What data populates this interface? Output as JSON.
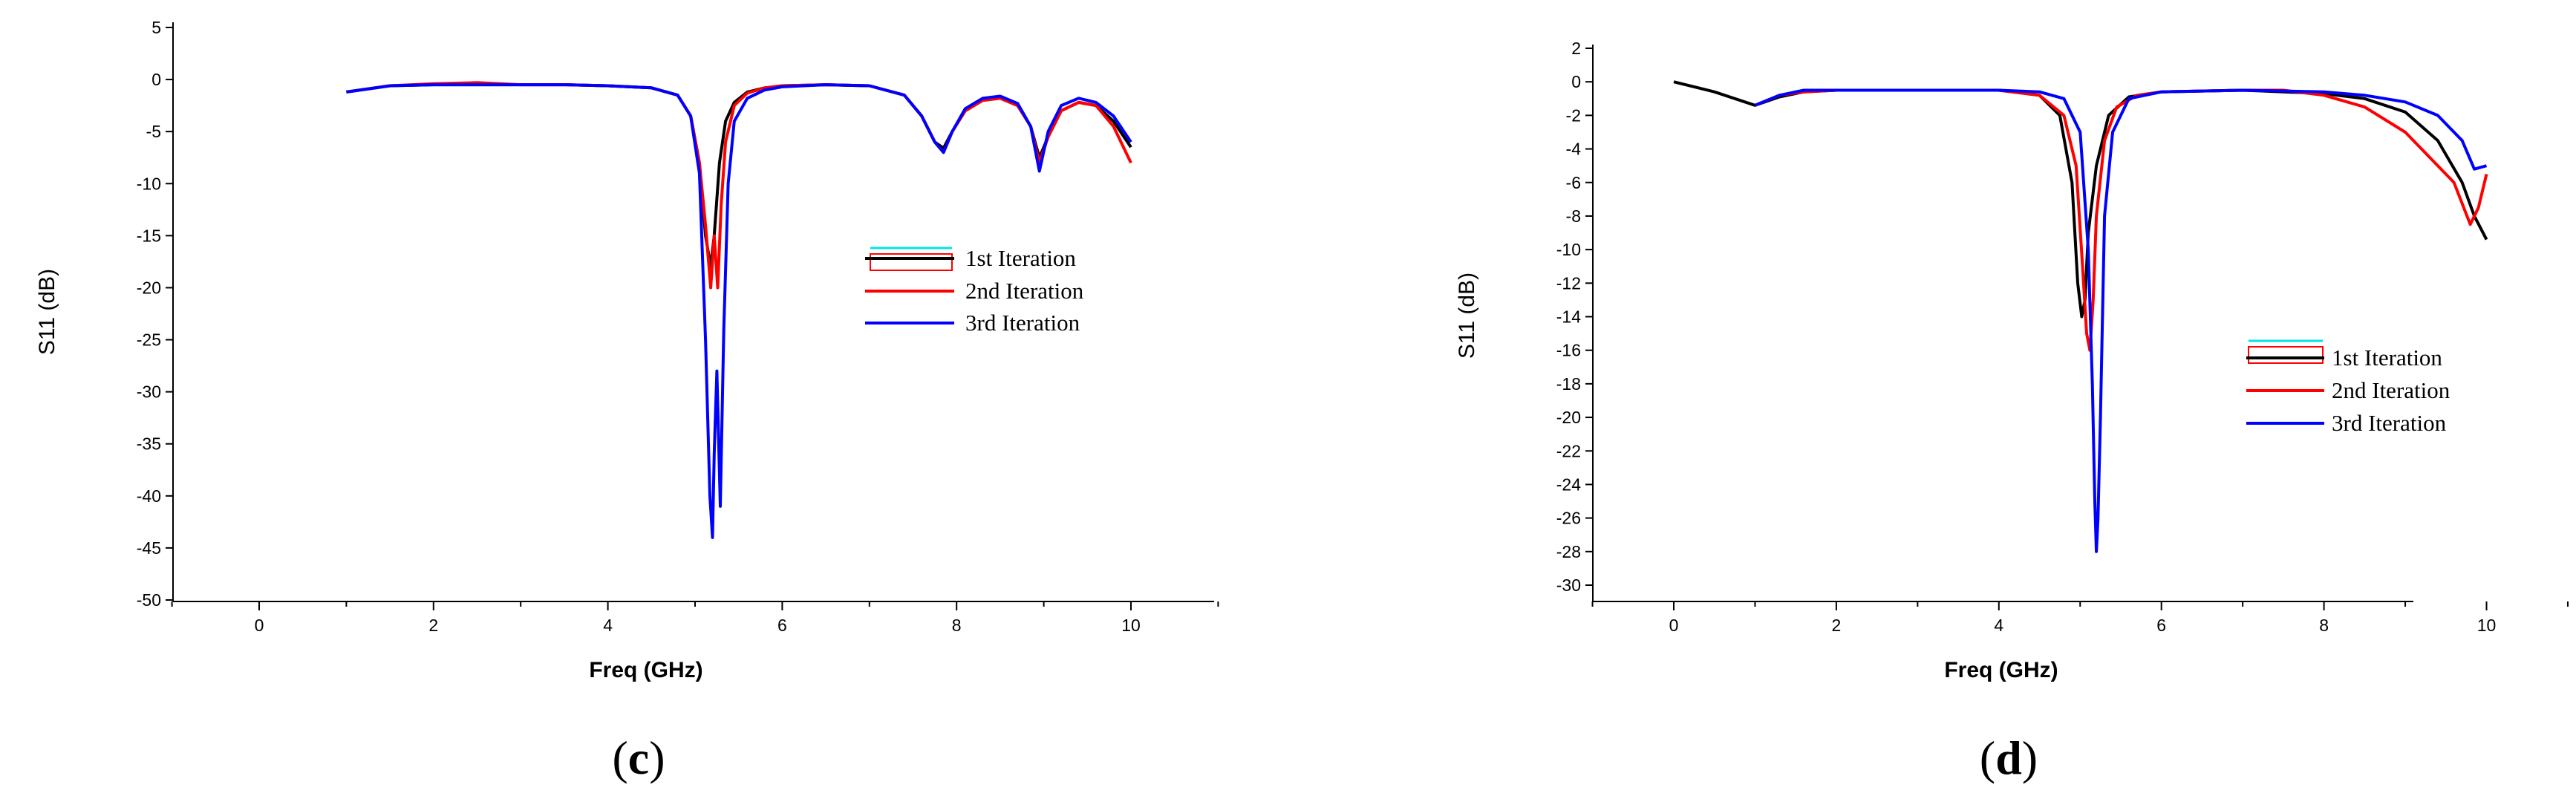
{
  "chart_data": [
    {
      "id": "c",
      "panel_label": [
        "(",
        "c",
        ")"
      ],
      "type": "line",
      "title": "",
      "xlabel": "Freq (GHz)",
      "ylabel": "S11 (dB)",
      "xlim": [
        -1,
        11
      ],
      "ylim": [
        -50,
        5
      ],
      "xticks": [
        0,
        2,
        4,
        6,
        8,
        10
      ],
      "yticks": [
        5,
        0,
        -5,
        -10,
        -15,
        -20,
        -25,
        -30,
        -35,
        -40,
        -45,
        -50
      ],
      "ytick_labels": [
        "5",
        "0",
        "-5",
        "-10",
        "-15",
        "-20",
        "-25",
        "-30",
        "-35",
        "-40",
        "-45",
        "-50"
      ],
      "legend_position": "right",
      "series": [
        {
          "name": "1st Iteration",
          "color": "#000000",
          "x": [
            1.0,
            1.5,
            2.0,
            2.5,
            3.0,
            3.5,
            4.0,
            4.5,
            4.8,
            4.95,
            5.05,
            5.12,
            5.18,
            5.22,
            5.28,
            5.35,
            5.45,
            5.6,
            5.8,
            6.0,
            6.5,
            7.0,
            7.4,
            7.6,
            7.75,
            7.85,
            7.95,
            8.1,
            8.3,
            8.5,
            8.7,
            8.85,
            8.95,
            9.05,
            9.2,
            9.4,
            9.6,
            9.8,
            10.0
          ],
          "y": [
            -1.2,
            -0.6,
            -0.5,
            -0.5,
            -0.5,
            -0.5,
            -0.6,
            -0.8,
            -1.5,
            -3.5,
            -8,
            -15,
            -18,
            -15,
            -8,
            -4,
            -2.2,
            -1.2,
            -0.8,
            -0.6,
            -0.5,
            -0.6,
            -1.5,
            -3.5,
            -6,
            -6.6,
            -5,
            -3,
            -2,
            -1.8,
            -2.5,
            -4.5,
            -7.5,
            -5.5,
            -3,
            -2.2,
            -2.5,
            -4,
            -6.5
          ]
        },
        {
          "name": "2nd Iteration",
          "color": "#ff0000",
          "x": [
            1.0,
            1.5,
            2.0,
            2.5,
            3.0,
            3.5,
            4.0,
            4.5,
            4.8,
            4.95,
            5.05,
            5.12,
            5.18,
            5.22,
            5.26,
            5.3,
            5.35,
            5.45,
            5.6,
            5.8,
            6.0,
            6.5,
            7.0,
            7.4,
            7.6,
            7.75,
            7.85,
            7.95,
            8.1,
            8.3,
            8.5,
            8.7,
            8.85,
            8.95,
            9.05,
            9.2,
            9.4,
            9.6,
            9.8,
            10.0
          ],
          "y": [
            -1.2,
            -0.6,
            -0.4,
            -0.3,
            -0.5,
            -0.5,
            -0.6,
            -0.8,
            -1.5,
            -3.5,
            -8,
            -14,
            -20,
            -15,
            -20,
            -12,
            -6,
            -2.5,
            -1.3,
            -0.8,
            -0.6,
            -0.5,
            -0.6,
            -1.5,
            -3.5,
            -6,
            -7,
            -5,
            -3,
            -2,
            -1.8,
            -2.5,
            -4.5,
            -8,
            -5.5,
            -3,
            -2.2,
            -2.5,
            -4.5,
            -8
          ]
        },
        {
          "name": "3rd  Iteration",
          "color": "#0000ff",
          "x": [
            1.0,
            1.5,
            2.0,
            2.5,
            3.0,
            3.5,
            4.0,
            4.5,
            4.8,
            4.95,
            5.05,
            5.12,
            5.17,
            5.2,
            5.22,
            5.25,
            5.29,
            5.33,
            5.38,
            5.45,
            5.6,
            5.8,
            6.0,
            6.5,
            7.0,
            7.4,
            7.6,
            7.75,
            7.85,
            7.95,
            8.1,
            8.3,
            8.5,
            8.7,
            8.85,
            8.95,
            9.05,
            9.2,
            9.4,
            9.6,
            9.8,
            10.0
          ],
          "y": [
            -1.2,
            -0.6,
            -0.5,
            -0.5,
            -0.5,
            -0.5,
            -0.6,
            -0.8,
            -1.5,
            -3.5,
            -9,
            -25,
            -40,
            -44,
            -36,
            -28,
            -41,
            -24,
            -10,
            -4,
            -1.8,
            -1,
            -0.7,
            -0.5,
            -0.6,
            -1.5,
            -3.5,
            -6,
            -7,
            -5,
            -2.8,
            -1.8,
            -1.6,
            -2.3,
            -4.5,
            -8.8,
            -5,
            -2.5,
            -1.8,
            -2.2,
            -3.5,
            -6
          ]
        }
      ]
    },
    {
      "id": "d",
      "panel_label": [
        "(",
        "d",
        ")"
      ],
      "type": "line",
      "title": "",
      "xlabel": "Freq (GHz)",
      "ylabel": "S11 (dB)",
      "xlim": [
        -1,
        11
      ],
      "ylim": [
        -31,
        2
      ],
      "xticks": [
        0,
        2,
        4,
        6,
        8,
        10
      ],
      "yticks": [
        2,
        0,
        -2,
        -4,
        -6,
        -8,
        -10,
        -12,
        -14,
        -16,
        -18,
        -20,
        -22,
        -24,
        -26,
        -28,
        -30
      ],
      "ytick_labels": [
        "2",
        "0",
        "-2",
        "-4",
        "-6",
        "-8",
        "-10",
        "-12",
        "-14",
        "-16",
        "-18",
        "-20",
        "-22",
        "-24",
        "-26",
        "-28",
        "-30"
      ],
      "legend_position": "right",
      "series": [
        {
          "name": "1st Iteration",
          "color": "#000000",
          "x": [
            0,
            0.5,
            1.0,
            1.3,
            1.6,
            2.0,
            3.0,
            4.0,
            4.5,
            4.75,
            4.9,
            4.97,
            5.02,
            5.06,
            5.1,
            5.2,
            5.35,
            5.6,
            6.0,
            7.0,
            8.0,
            8.5,
            9.0,
            9.4,
            9.7,
            9.85,
            10.0
          ],
          "y": [
            0,
            -0.6,
            -1.4,
            -0.9,
            -0.6,
            -0.5,
            -0.5,
            -0.5,
            -0.8,
            -2,
            -6,
            -12,
            -14,
            -13,
            -9,
            -5,
            -2,
            -0.9,
            -0.6,
            -0.5,
            -0.7,
            -1.0,
            -1.8,
            -3.5,
            -6,
            -8,
            -9.4
          ]
        },
        {
          "name": "2nd Iteration",
          "color": "#ff0000",
          "x": [
            1.0,
            1.3,
            1.6,
            2.0,
            3.0,
            4.0,
            4.5,
            4.8,
            4.95,
            5.03,
            5.08,
            5.12,
            5.16,
            5.2,
            5.3,
            5.45,
            5.7,
            6.0,
            7.0,
            7.5,
            8.0,
            8.5,
            9.0,
            9.3,
            9.6,
            9.8,
            9.9,
            10.0
          ],
          "y": [
            -1.4,
            -0.8,
            -0.6,
            -0.5,
            -0.5,
            -0.5,
            -0.8,
            -2,
            -5,
            -11,
            -15,
            -16,
            -13,
            -8,
            -3.5,
            -1.5,
            -0.8,
            -0.6,
            -0.5,
            -0.5,
            -0.8,
            -1.5,
            -3,
            -4.5,
            -6,
            -8.5,
            -7.5,
            -5.5
          ]
        },
        {
          "name": "3rd Iteration",
          "color": "#0000ff",
          "x": [
            1.0,
            1.3,
            1.6,
            2.0,
            3.0,
            4.0,
            4.5,
            4.8,
            5.0,
            5.1,
            5.15,
            5.18,
            5.2,
            5.22,
            5.25,
            5.3,
            5.4,
            5.6,
            6.0,
            7.0,
            8.0,
            8.5,
            9.0,
            9.4,
            9.7,
            9.85,
            10.0
          ],
          "y": [
            -1.4,
            -0.8,
            -0.5,
            -0.5,
            -0.5,
            -0.5,
            -0.6,
            -1,
            -3,
            -10,
            -18,
            -25,
            -28,
            -26,
            -20,
            -8,
            -3,
            -1,
            -0.6,
            -0.5,
            -0.6,
            -0.8,
            -1.2,
            -2,
            -3.5,
            -5.2,
            -5
          ]
        }
      ]
    }
  ]
}
